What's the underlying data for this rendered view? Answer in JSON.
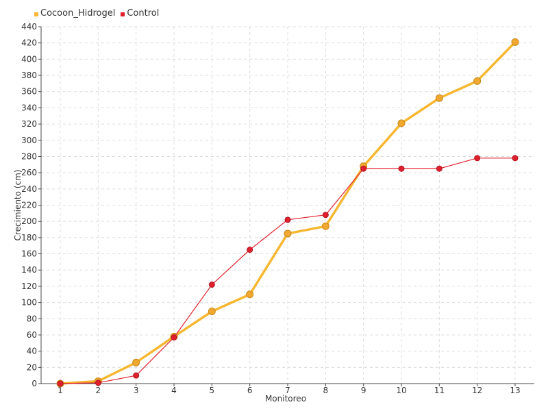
{
  "chart_data": {
    "type": "line",
    "title": "",
    "xlabel": "Monitoreo",
    "ylabel": "Crecimiento (cm)",
    "categories": [
      "1",
      "2",
      "3",
      "4",
      "5",
      "6",
      "7",
      "8",
      "9",
      "10",
      "11",
      "12",
      "13"
    ],
    "ylim": [
      0,
      440
    ],
    "y_ticks": [
      0,
      20,
      40,
      60,
      80,
      100,
      120,
      140,
      160,
      180,
      200,
      220,
      240,
      260,
      280,
      300,
      320,
      340,
      360,
      380,
      400,
      420,
      440
    ],
    "grid": true,
    "legend": "top-left",
    "series": [
      {
        "name": "Cocoon_Hidrogel",
        "color": "#f7b731",
        "values": [
          0,
          3,
          26,
          58,
          89,
          110,
          185,
          194,
          268,
          321,
          352,
          373,
          421
        ]
      },
      {
        "name": "Control",
        "color": "#e0202e",
        "values": [
          0,
          1,
          10,
          57,
          122,
          165,
          202,
          208,
          265,
          265,
          265,
          278,
          278
        ]
      }
    ]
  }
}
